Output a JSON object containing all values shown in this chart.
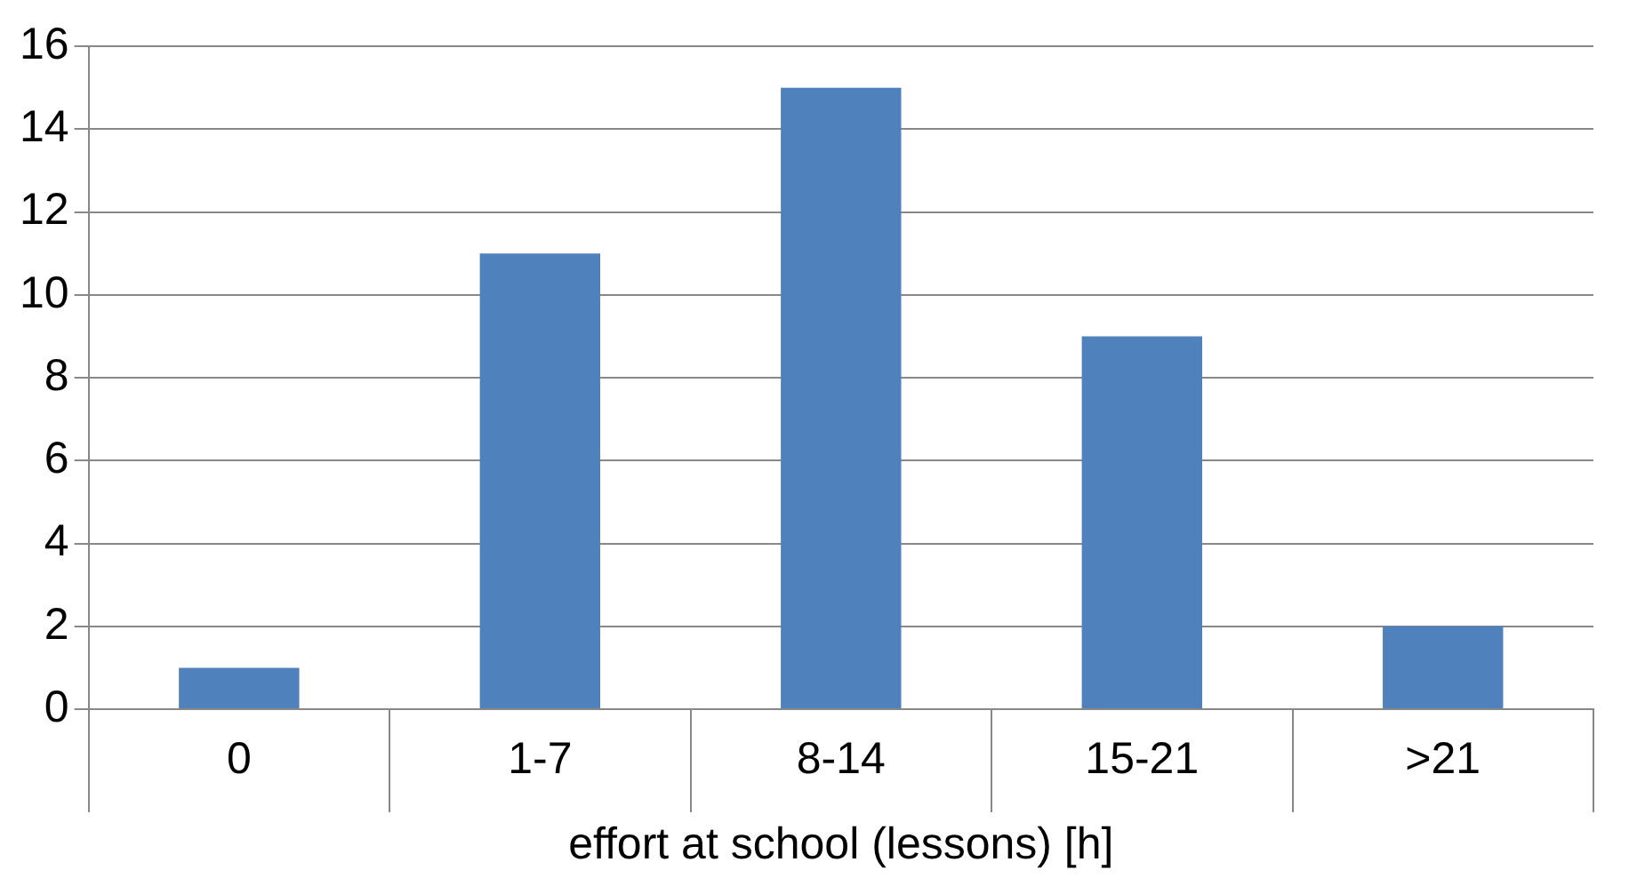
{
  "chart_data": {
    "type": "bar",
    "xlabel": "effort at school (lessons) [h]",
    "categories": [
      "0",
      "1-7",
      "8-14",
      "15-21",
      ">21"
    ],
    "values": [
      1,
      11,
      15,
      9,
      2
    ],
    "color": "#4f81bd",
    "ylim": [
      0,
      16
    ],
    "yticks": [
      0,
      2,
      4,
      6,
      8,
      10,
      12,
      14,
      16
    ],
    "grid": "y",
    "legend": false
  }
}
